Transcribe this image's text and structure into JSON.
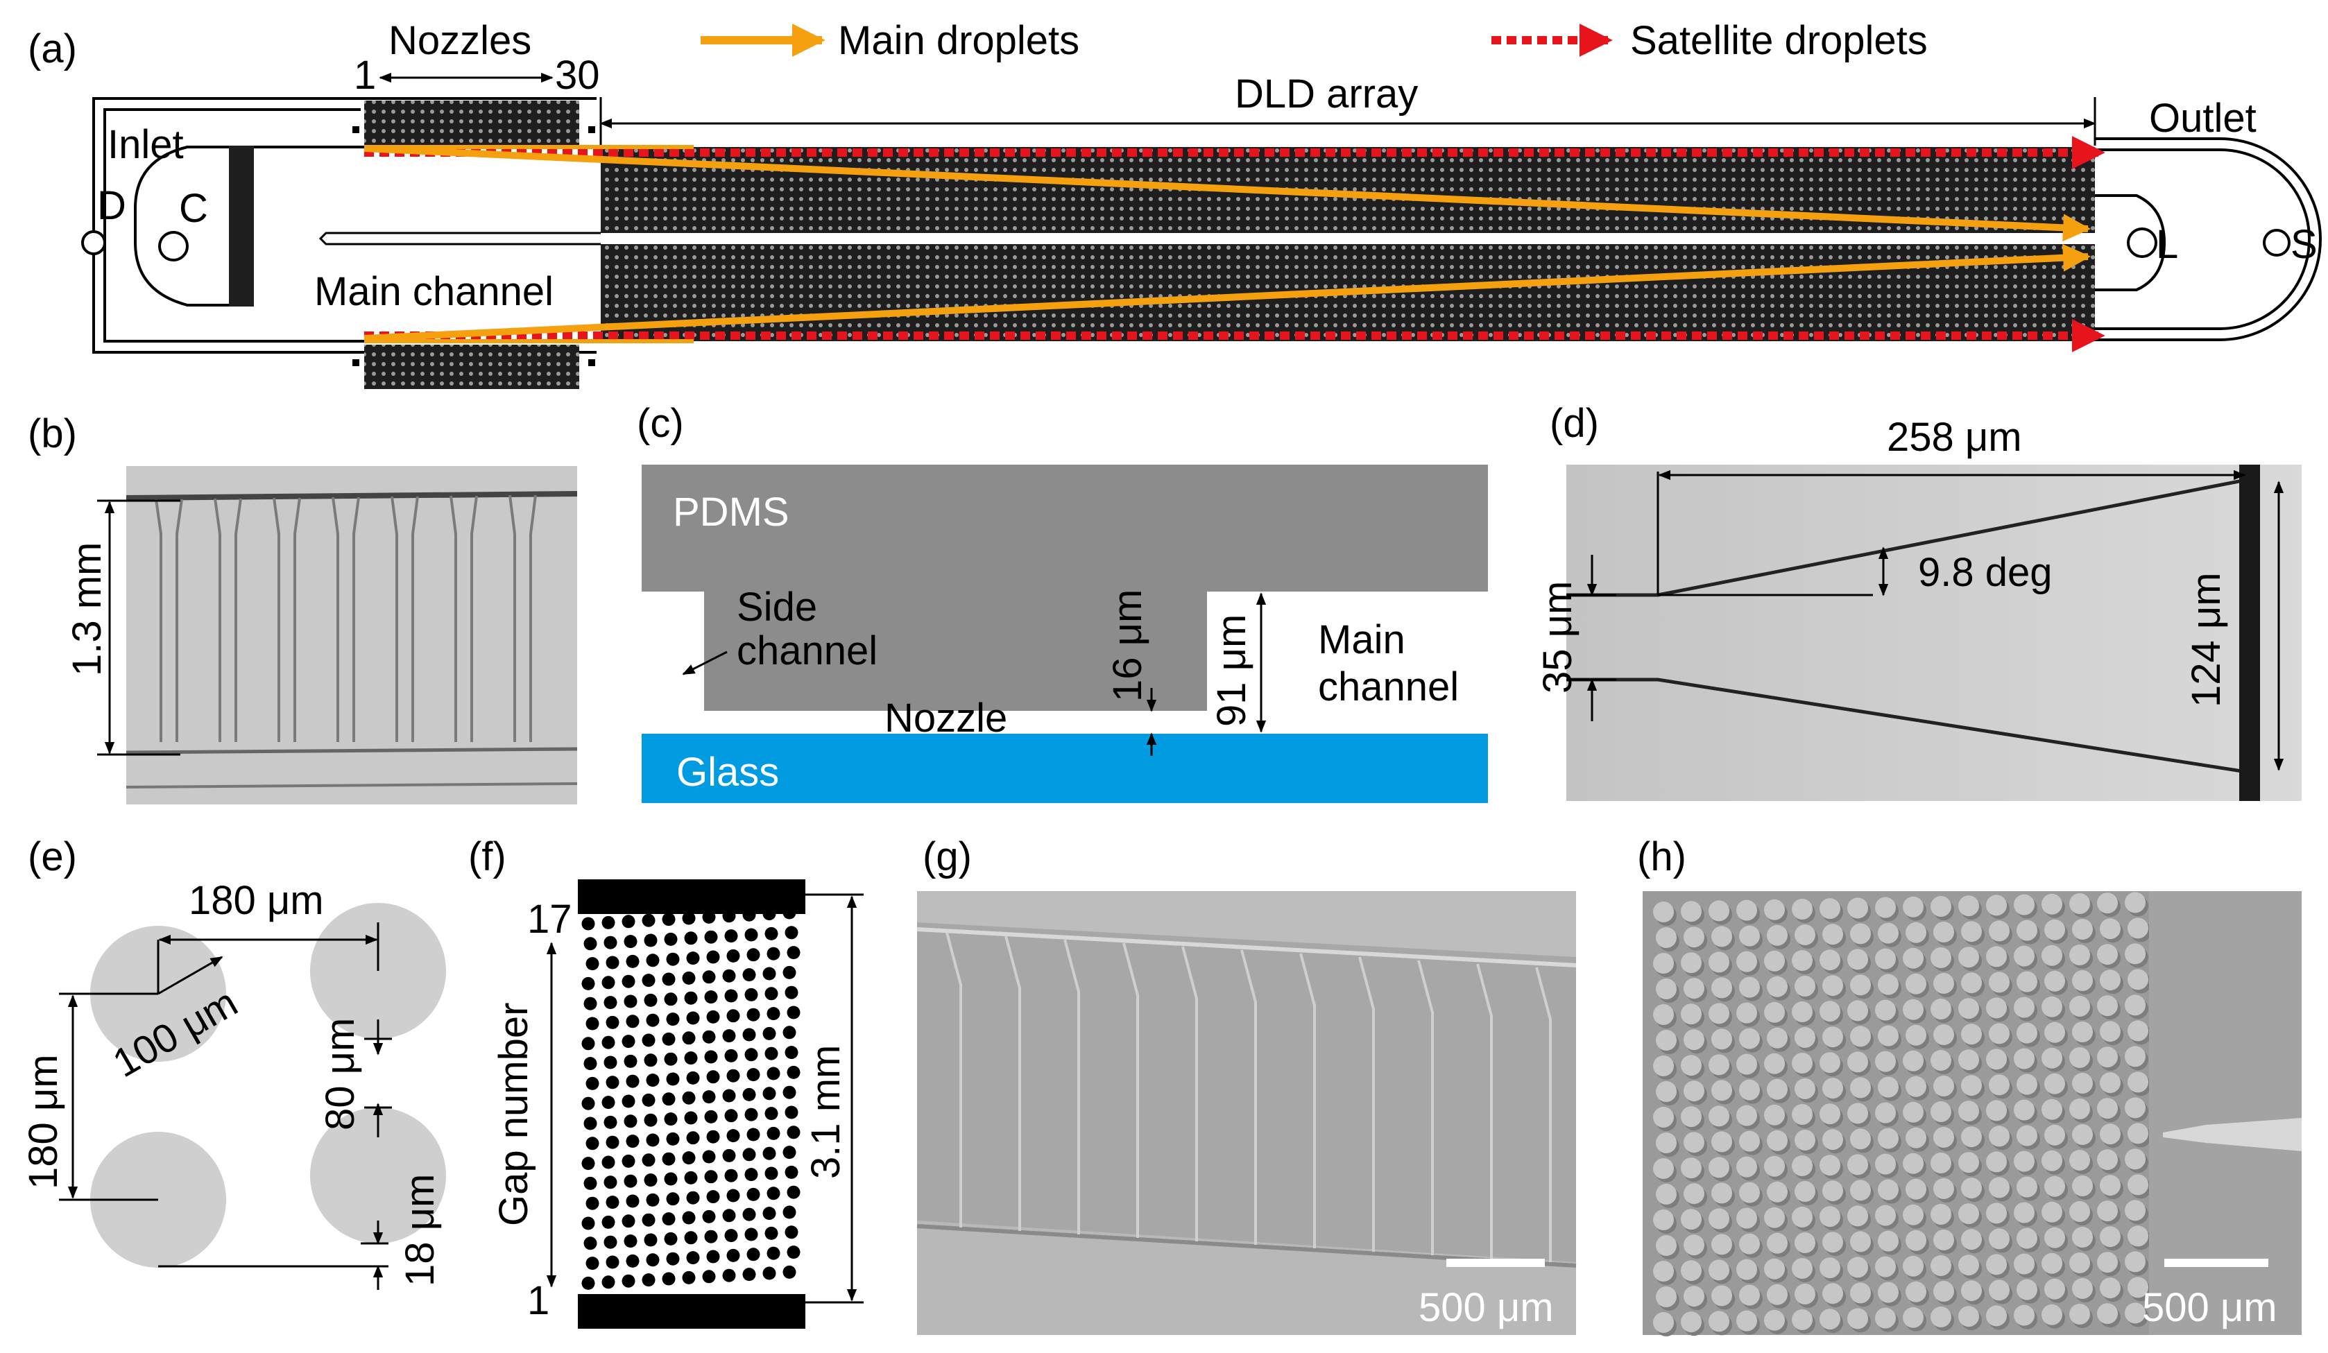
{
  "colors": {
    "main_droplet_arrow": "#f5a00f",
    "satellite_droplet_arrow": "#e8141b",
    "pdms": "#8c8c8c",
    "glass": "#009be0",
    "micro_bg": "#c8c8c8",
    "pillar": "#cfcfcf"
  },
  "panel_a": {
    "label": "(a)",
    "legend_main": "Main droplets",
    "legend_satellite": "Satellite droplets",
    "nozzles_title": "Nozzles",
    "nozzle_first": "1",
    "nozzle_last": "30",
    "dld_array": "DLD array",
    "inlet": "Inlet",
    "outlet": "Outlet",
    "port_d": "D",
    "port_c": "C",
    "port_l": "L",
    "port_s": "S",
    "main_channel": "Main channel"
  },
  "panel_b": {
    "label": "(b)",
    "dimension": "1.3 mm"
  },
  "panel_c": {
    "label": "(c)",
    "pdms": "PDMS",
    "side_channel_1": "Side",
    "side_channel_2": "channel",
    "nozzle": "Nozzle",
    "gap_height": "16 μm",
    "channel_height": "91 μm",
    "main_channel_1": "Main",
    "main_channel_2": "channel",
    "glass": "Glass"
  },
  "panel_d": {
    "label": "(d)",
    "length": "258 μm",
    "angle": "9.8 deg",
    "inlet_width": "35 μm",
    "outlet_width": "124 μm"
  },
  "panel_e": {
    "label": "(e)",
    "pitch_x": "180 μm",
    "pitch_y": "180 μm",
    "diameter": "100 μm",
    "gap": "80 μm",
    "offset": "18 μm"
  },
  "panel_f": {
    "label": "(f)",
    "axis_title": "Gap number",
    "gap_top": "17",
    "gap_bottom": "1",
    "height": "3.1 mm"
  },
  "panel_g": {
    "label": "(g)",
    "scale_bar": "500 μm"
  },
  "panel_h": {
    "label": "(h)",
    "scale_bar": "500 μm"
  }
}
